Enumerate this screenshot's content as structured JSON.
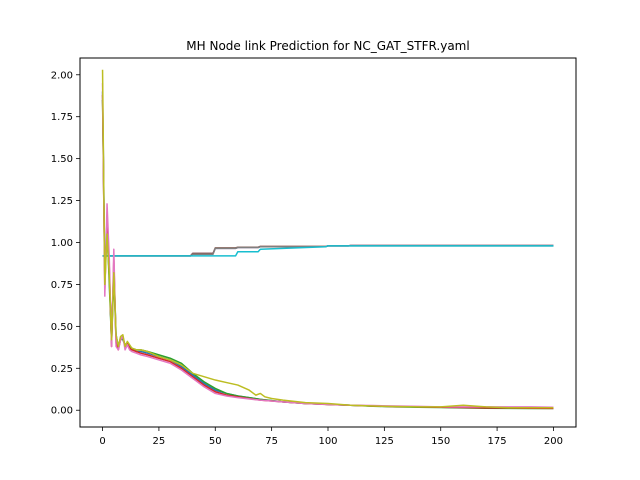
{
  "chart_data": {
    "type": "line",
    "title": "MH Node link Prediction for NC_GAT_STFR.yaml",
    "xlabel": "",
    "ylabel": "",
    "xlim": [
      -10,
      210
    ],
    "ylim": [
      -0.1,
      2.1
    ],
    "x_ticks": [
      0,
      25,
      50,
      75,
      100,
      125,
      150,
      175,
      200
    ],
    "x_tick_labels": [
      "0",
      "25",
      "50",
      "75",
      "100",
      "125",
      "150",
      "175",
      "200"
    ],
    "y_ticks": [
      0.0,
      0.25,
      0.5,
      0.75,
      1.0,
      1.25,
      1.5,
      1.75,
      2.0
    ],
    "y_tick_labels": [
      "0.00",
      "0.25",
      "0.50",
      "0.75",
      "1.00",
      "1.25",
      "1.50",
      "1.75",
      "2.00"
    ],
    "grid": false,
    "legend": "none",
    "series": [
      {
        "color": "#9467bd",
        "x": [
          0,
          20,
          39,
          40,
          49,
          50,
          59,
          60,
          69,
          70,
          99,
          100,
          109,
          110,
          200
        ],
        "y": [
          0.92,
          0.92,
          0.92,
          0.935,
          0.935,
          0.965,
          0.965,
          0.97,
          0.97,
          0.975,
          0.975,
          0.98,
          0.98,
          0.982,
          0.982
        ]
      },
      {
        "color": "#8c564b",
        "x": [
          0,
          20,
          39,
          40,
          49,
          50,
          59,
          60,
          69,
          70,
          99,
          100,
          109,
          110,
          200
        ],
        "y": [
          0.92,
          0.92,
          0.92,
          0.935,
          0.935,
          0.968,
          0.968,
          0.972,
          0.972,
          0.977,
          0.977,
          0.98,
          0.98,
          0.982,
          0.982
        ]
      },
      {
        "color": "#7f7f7f",
        "x": [
          0,
          20,
          39,
          40,
          49,
          50,
          59,
          60,
          69,
          70,
          99,
          100,
          200
        ],
        "y": [
          0.92,
          0.92,
          0.92,
          0.93,
          0.93,
          0.965,
          0.965,
          0.97,
          0.97,
          0.975,
          0.975,
          0.98,
          0.98
        ]
      },
      {
        "color": "#17becf",
        "x": [
          0,
          20,
          40,
          59,
          60,
          69,
          70,
          99,
          100,
          200
        ],
        "y": [
          0.92,
          0.92,
          0.92,
          0.92,
          0.945,
          0.945,
          0.96,
          0.975,
          0.98,
          0.98
        ]
      },
      {
        "color": "#1f77b4",
        "x": [
          0,
          1,
          2,
          3,
          4,
          5,
          6,
          7,
          8,
          9,
          10,
          11,
          12,
          13,
          15,
          17,
          20,
          25,
          30,
          35,
          40,
          45,
          50,
          55,
          60,
          70,
          80,
          90,
          100,
          110,
          120,
          130,
          140,
          150,
          160,
          170,
          180,
          190,
          200
        ],
        "y": [
          1.9,
          0.85,
          1.05,
          0.8,
          0.42,
          0.85,
          0.45,
          0.38,
          0.42,
          0.43,
          0.38,
          0.39,
          0.38,
          0.37,
          0.35,
          0.35,
          0.34,
          0.32,
          0.3,
          0.26,
          0.21,
          0.16,
          0.12,
          0.1,
          0.085,
          0.065,
          0.05,
          0.04,
          0.035,
          0.03,
          0.025,
          0.022,
          0.02,
          0.018,
          0.016,
          0.015,
          0.014,
          0.013,
          0.012
        ]
      },
      {
        "color": "#2ca02c",
        "x": [
          0,
          1,
          2,
          3,
          4,
          5,
          6,
          7,
          8,
          9,
          10,
          11,
          12,
          13,
          15,
          17,
          20,
          25,
          30,
          35,
          40,
          45,
          50,
          55,
          60,
          70,
          80,
          90,
          100,
          110,
          120,
          130,
          140,
          150,
          160,
          170,
          180,
          190,
          200
        ],
        "y": [
          1.85,
          0.78,
          1.1,
          0.75,
          0.4,
          0.8,
          0.42,
          0.37,
          0.43,
          0.42,
          0.39,
          0.4,
          0.38,
          0.37,
          0.36,
          0.36,
          0.35,
          0.33,
          0.31,
          0.28,
          0.22,
          0.17,
          0.13,
          0.1,
          0.085,
          0.065,
          0.05,
          0.04,
          0.035,
          0.03,
          0.024,
          0.02,
          0.018,
          0.016,
          0.014,
          0.012,
          0.011,
          0.01,
          0.01
        ]
      },
      {
        "color": "#d62728",
        "x": [
          0,
          1,
          2,
          3,
          4,
          5,
          6,
          7,
          8,
          9,
          10,
          11,
          12,
          13,
          15,
          17,
          20,
          25,
          30,
          35,
          40,
          45,
          50,
          55,
          60,
          70,
          80,
          90,
          100,
          110,
          120,
          130,
          140,
          150,
          160,
          170,
          180,
          190,
          200
        ],
        "y": [
          1.88,
          0.72,
          1.15,
          0.85,
          0.38,
          0.9,
          0.4,
          0.36,
          0.42,
          0.44,
          0.38,
          0.4,
          0.37,
          0.36,
          0.35,
          0.34,
          0.33,
          0.31,
          0.29,
          0.25,
          0.2,
          0.15,
          0.11,
          0.09,
          0.08,
          0.06,
          0.05,
          0.04,
          0.034,
          0.03,
          0.025,
          0.022,
          0.02,
          0.018,
          0.016,
          0.014,
          0.013,
          0.012,
          0.011
        ]
      },
      {
        "color": "#e377c2",
        "x": [
          0,
          1,
          2,
          3,
          4,
          5,
          6,
          7,
          8,
          9,
          10,
          11,
          12,
          13,
          15,
          17,
          20,
          25,
          30,
          35,
          40,
          45,
          50,
          55,
          60,
          70,
          80,
          90,
          100,
          110,
          120,
          130,
          140,
          150,
          160,
          170,
          180,
          190,
          200
        ],
        "y": [
          1.95,
          0.68,
          1.23,
          0.9,
          0.38,
          0.96,
          0.38,
          0.36,
          0.42,
          0.44,
          0.36,
          0.39,
          0.36,
          0.35,
          0.34,
          0.33,
          0.32,
          0.3,
          0.28,
          0.24,
          0.19,
          0.14,
          0.1,
          0.085,
          0.075,
          0.06,
          0.05,
          0.04,
          0.035,
          0.03,
          0.028,
          0.025,
          0.023,
          0.02,
          0.02,
          0.02,
          0.02,
          0.02,
          0.018
        ]
      },
      {
        "color": "#bcbd22",
        "x": [
          0,
          1,
          2,
          3,
          4,
          5,
          6,
          7,
          8,
          9,
          10,
          11,
          12,
          13,
          15,
          17,
          20,
          25,
          30,
          35,
          40,
          45,
          50,
          55,
          60,
          65,
          68,
          70,
          72,
          75,
          80,
          90,
          100,
          110,
          120,
          130,
          140,
          150,
          160,
          170,
          180,
          190,
          200
        ],
        "y": [
          2.03,
          0.75,
          1.05,
          0.8,
          0.42,
          0.82,
          0.45,
          0.38,
          0.44,
          0.45,
          0.38,
          0.41,
          0.39,
          0.37,
          0.36,
          0.36,
          0.35,
          0.32,
          0.3,
          0.27,
          0.22,
          0.2,
          0.18,
          0.165,
          0.15,
          0.12,
          0.09,
          0.1,
          0.08,
          0.07,
          0.06,
          0.045,
          0.04,
          0.03,
          0.025,
          0.022,
          0.02,
          0.02,
          0.03,
          0.02,
          0.015,
          0.015,
          0.015
        ]
      }
    ]
  }
}
